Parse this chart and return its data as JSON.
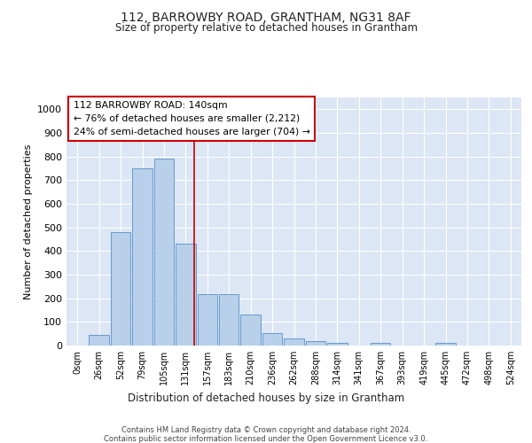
{
  "title": "112, BARROWBY ROAD, GRANTHAM, NG31 8AF",
  "subtitle": "Size of property relative to detached houses in Grantham",
  "xlabel": "Distribution of detached houses by size in Grantham",
  "ylabel": "Number of detached properties",
  "bar_labels": [
    "0sqm",
    "26sqm",
    "52sqm",
    "79sqm",
    "105sqm",
    "131sqm",
    "157sqm",
    "183sqm",
    "210sqm",
    "236sqm",
    "262sqm",
    "288sqm",
    "314sqm",
    "341sqm",
    "367sqm",
    "393sqm",
    "419sqm",
    "445sqm",
    "472sqm",
    "498sqm",
    "524sqm"
  ],
  "bar_values": [
    0,
    45,
    480,
    750,
    790,
    430,
    218,
    218,
    130,
    52,
    30,
    17,
    11,
    0,
    10,
    0,
    0,
    12,
    0,
    0,
    0
  ],
  "bar_color": "#b8d0ea",
  "bar_edgecolor": "#6699cc",
  "bg_color": "#dce6f5",
  "grid_color": "#ffffff",
  "vline_x": 5.38,
  "vline_color": "#cc0000",
  "annotation_text": "112 BARROWBY ROAD: 140sqm\n← 76% of detached houses are smaller (2,212)\n24% of semi-detached houses are larger (704) →",
  "annotation_box_facecolor": "#ffffff",
  "annotation_box_edgecolor": "#cc0000",
  "ylim": [
    0,
    1050
  ],
  "yticks": [
    0,
    100,
    200,
    300,
    400,
    500,
    600,
    700,
    800,
    900,
    1000
  ],
  "footer_line1": "Contains HM Land Registry data © Crown copyright and database right 2024.",
  "footer_line2": "Contains public sector information licensed under the Open Government Licence v3.0."
}
